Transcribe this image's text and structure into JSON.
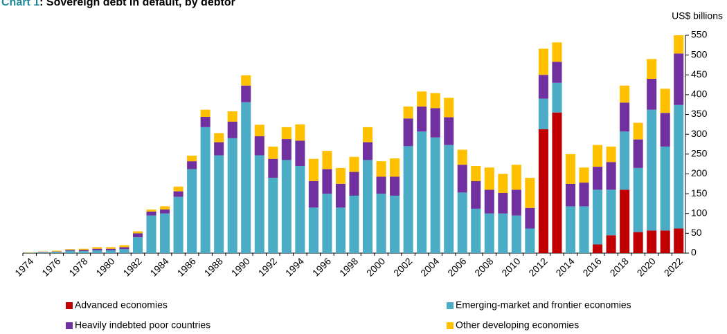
{
  "chart_data": {
    "type": "stacked_bar",
    "label": "Chart 1",
    "title": ": Sovereign debt in default, by debtor",
    "y_axis_label": "US$ billions",
    "categories": [
      "1974",
      null,
      "1976",
      null,
      "1978",
      null,
      "1980",
      null,
      "1982",
      null,
      "1984",
      null,
      "1986",
      null,
      "1988",
      null,
      "1990",
      null,
      "1992",
      null,
      "1994",
      null,
      "1996",
      null,
      "1998",
      null,
      "2000",
      null,
      "2002",
      null,
      "2004",
      null,
      "2006",
      null,
      "2008",
      null,
      "2010",
      null,
      "2012",
      null,
      "2014",
      null,
      "2016",
      null,
      "2018",
      null,
      "2020",
      null,
      "2022"
    ],
    "series": [
      {
        "name": "Advanced economies",
        "color": "#c00000",
        "values": [
          0,
          0,
          0,
          0,
          0,
          0,
          0,
          0,
          0,
          0,
          0,
          0,
          0,
          0,
          0,
          0,
          0,
          0,
          0,
          0,
          0,
          0,
          0,
          0,
          0,
          0,
          0,
          0,
          0,
          0,
          0,
          0,
          0,
          0,
          0,
          0,
          0,
          0,
          313,
          355,
          0,
          0,
          22,
          45,
          160,
          53,
          57,
          57,
          62
        ]
      },
      {
        "name": "Emerging-market and frontier economies",
        "color": "#4bacc6",
        "values": [
          1,
          2,
          3,
          6,
          5,
          7,
          7,
          10,
          40,
          95,
          100,
          142,
          212,
          318,
          247,
          290,
          381,
          247,
          190,
          235,
          220,
          115,
          150,
          115,
          145,
          235,
          150,
          145,
          270,
          307,
          292,
          273,
          153,
          112,
          100,
          100,
          95,
          62,
          77,
          75,
          118,
          118,
          138,
          115,
          147,
          162,
          305,
          212,
          312
        ]
      },
      {
        "name": "Heavily indebted poor countries",
        "color": "#7030a0",
        "values": [
          0,
          1,
          1,
          2,
          3,
          4,
          4,
          5,
          10,
          10,
          10,
          14,
          20,
          26,
          33,
          42,
          42,
          48,
          48,
          53,
          64,
          67,
          62,
          60,
          60,
          45,
          43,
          48,
          70,
          63,
          74,
          70,
          70,
          70,
          60,
          52,
          65,
          52,
          60,
          53,
          57,
          60,
          58,
          70,
          73,
          72,
          78,
          85,
          130
        ]
      },
      {
        "name": "Other developing economies",
        "color": "#ffc000",
        "values": [
          1,
          1,
          2,
          2,
          3,
          4,
          4,
          5,
          5,
          5,
          8,
          12,
          14,
          18,
          23,
          26,
          26,
          29,
          31,
          30,
          41,
          56,
          46,
          40,
          38,
          38,
          39,
          46,
          30,
          38,
          38,
          49,
          38,
          38,
          56,
          48,
          63,
          76,
          66,
          49,
          75,
          38,
          55,
          39,
          43,
          42,
          50,
          61,
          46
        ]
      }
    ],
    "ylim": [
      0,
      550
    ],
    "yticks": [
      0,
      50,
      100,
      150,
      200,
      250,
      300,
      350,
      400,
      450,
      500,
      550
    ]
  }
}
